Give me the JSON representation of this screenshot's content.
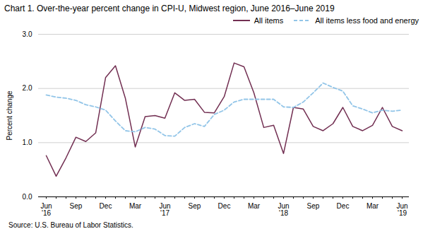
{
  "chart_data": {
    "type": "line",
    "title": "Chart 1. Over-the-year percent change in CPI-U, Midwest region, June 2016–June 2019",
    "ylabel": "Percent change",
    "source": "Source: U.S. Bureau of Labor Statistics.",
    "categories": [
      "Jun\n'16",
      null,
      null,
      "Sep",
      null,
      null,
      "Dec",
      null,
      null,
      "Mar",
      null,
      null,
      "Jun\n'17",
      null,
      null,
      "Sep",
      null,
      null,
      "Dec",
      null,
      null,
      "Mar",
      null,
      null,
      "Jun\n'18",
      null,
      null,
      "Sep",
      null,
      null,
      "Dec",
      null,
      null,
      "Mar",
      null,
      null,
      "Jun\n'19"
    ],
    "series": [
      {
        "name": "All items",
        "color": "#722F52",
        "line_style": "solid",
        "values": [
          0.76,
          0.38,
          0.72,
          1.1,
          1.02,
          1.18,
          2.2,
          2.42,
          1.82,
          0.92,
          1.48,
          1.5,
          1.45,
          1.92,
          1.78,
          1.8,
          1.56,
          1.55,
          1.85,
          2.47,
          2.4,
          1.92,
          1.28,
          1.32,
          0.8,
          1.65,
          1.62,
          1.3,
          1.22,
          1.35,
          1.65,
          1.3,
          1.22,
          1.32,
          1.65,
          1.3,
          1.22
        ]
      },
      {
        "name": "All items less food and energy",
        "color": "#92C5E8",
        "line_style": "dashed",
        "values": [
          1.88,
          1.84,
          1.82,
          1.78,
          1.7,
          1.66,
          1.6,
          1.4,
          1.22,
          1.2,
          1.28,
          1.25,
          1.13,
          1.12,
          1.28,
          1.35,
          1.3,
          1.52,
          1.6,
          1.75,
          1.8,
          1.8,
          1.8,
          1.8,
          1.66,
          1.65,
          1.75,
          1.92,
          2.1,
          2.02,
          1.95,
          1.68,
          1.62,
          1.55,
          1.6,
          1.58,
          1.6
        ]
      }
    ],
    "ylim": [
      0.0,
      3.0
    ],
    "yticks": [
      {
        "value": 0.0,
        "label": "0.0"
      },
      {
        "value": 1.0,
        "label": "1.0"
      },
      {
        "value": 2.0,
        "label": "2.0"
      },
      {
        "value": 3.0,
        "label": "3.0"
      }
    ],
    "grid": true,
    "legend": "upper right"
  }
}
